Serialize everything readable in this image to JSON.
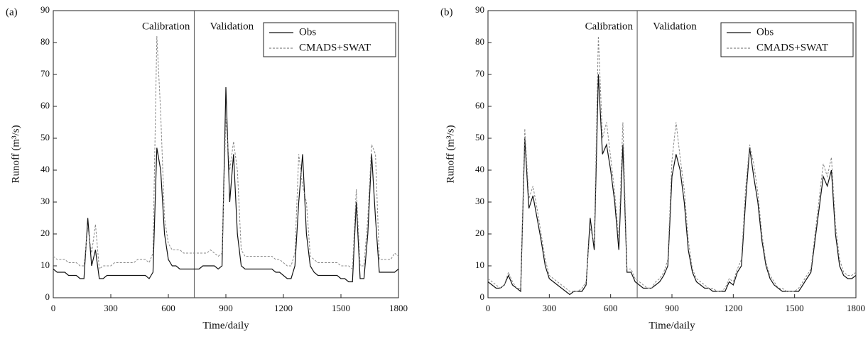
{
  "chart_data": [
    {
      "type": "line",
      "panel_label": "(a)",
      "xlabel": "Time/daily",
      "ylabel": "Runoff (m³/s)",
      "xlim": [
        0,
        1800
      ],
      "xticks": [
        0,
        300,
        600,
        900,
        1200,
        1500,
        1800
      ],
      "ylim": [
        0,
        90
      ],
      "yticks": [
        0,
        10,
        20,
        30,
        40,
        50,
        60,
        70,
        80,
        90
      ],
      "divider_x": 735,
      "period_labels": [
        "Calibration",
        "Validation"
      ],
      "legend": "upper right",
      "x": [
        0,
        20,
        40,
        60,
        80,
        100,
        120,
        140,
        160,
        180,
        200,
        220,
        240,
        260,
        280,
        300,
        320,
        340,
        360,
        380,
        400,
        420,
        440,
        460,
        480,
        500,
        520,
        540,
        560,
        580,
        600,
        620,
        640,
        660,
        680,
        700,
        720,
        740,
        760,
        780,
        800,
        820,
        840,
        860,
        880,
        900,
        920,
        940,
        960,
        980,
        1000,
        1020,
        1040,
        1060,
        1080,
        1100,
        1120,
        1140,
        1160,
        1180,
        1200,
        1220,
        1240,
        1260,
        1280,
        1300,
        1320,
        1340,
        1360,
        1380,
        1400,
        1420,
        1440,
        1460,
        1480,
        1500,
        1520,
        1540,
        1560,
        1580,
        1600,
        1620,
        1640,
        1660,
        1680,
        1700,
        1720,
        1740,
        1760,
        1780,
        1800
      ],
      "series": [
        {
          "name": "Obs",
          "color": "#111111",
          "dash": false,
          "values": [
            9,
            8,
            8,
            8,
            7,
            7,
            7,
            6,
            6,
            25,
            10,
            15,
            6,
            6,
            7,
            7,
            7,
            7,
            7,
            7,
            7,
            7,
            7,
            7,
            7,
            6,
            8,
            47,
            40,
            20,
            12,
            10,
            10,
            9,
            9,
            9,
            9,
            9,
            9,
            10,
            10,
            10,
            10,
            9,
            10,
            66,
            30,
            45,
            20,
            10,
            9,
            9,
            9,
            9,
            9,
            9,
            9,
            9,
            8,
            8,
            7,
            6,
            6,
            10,
            30,
            45,
            20,
            10,
            8,
            7,
            7,
            7,
            7,
            7,
            7,
            6,
            6,
            5,
            5,
            30,
            6,
            6,
            20,
            45,
            25,
            8,
            8,
            8,
            8,
            8,
            9
          ]
        },
        {
          "name": "CMADS+SWAT",
          "color": "#888888",
          "dash": true,
          "values": [
            13,
            12,
            12,
            12,
            11,
            11,
            11,
            10,
            10,
            22,
            14,
            23,
            9,
            10,
            10,
            10,
            11,
            11,
            11,
            11,
            11,
            11,
            12,
            12,
            12,
            11,
            14,
            82,
            58,
            25,
            17,
            15,
            15,
            15,
            14,
            14,
            14,
            14,
            14,
            14,
            14,
            15,
            14,
            13,
            14,
            56,
            40,
            49,
            40,
            15,
            13,
            13,
            13,
            13,
            13,
            13,
            13,
            13,
            12,
            12,
            11,
            10,
            10,
            14,
            45,
            35,
            30,
            13,
            12,
            11,
            11,
            11,
            11,
            11,
            11,
            10,
            10,
            10,
            9,
            34,
            10,
            10,
            25,
            48,
            45,
            12,
            12,
            12,
            12,
            14,
            13
          ]
        }
      ]
    },
    {
      "type": "line",
      "panel_label": "(b)",
      "xlabel": "Time/daily",
      "ylabel": "Runoff (m³/s)",
      "xlim": [
        0,
        1800
      ],
      "xticks": [
        0,
        300,
        600,
        900,
        1200,
        1500,
        1800
      ],
      "ylim": [
        0,
        90
      ],
      "yticks": [
        0,
        10,
        20,
        30,
        40,
        50,
        60,
        70,
        80,
        90
      ],
      "divider_x": 730,
      "period_labels": [
        "Calibration",
        "Validation"
      ],
      "legend": "upper right",
      "x": [
        0,
        20,
        40,
        60,
        80,
        100,
        120,
        140,
        160,
        180,
        200,
        220,
        240,
        260,
        280,
        300,
        320,
        340,
        360,
        380,
        400,
        420,
        440,
        460,
        480,
        500,
        520,
        540,
        560,
        580,
        600,
        620,
        640,
        660,
        680,
        700,
        720,
        740,
        760,
        780,
        800,
        820,
        840,
        860,
        880,
        900,
        920,
        940,
        960,
        980,
        1000,
        1020,
        1040,
        1060,
        1080,
        1100,
        1120,
        1140,
        1160,
        1180,
        1200,
        1220,
        1240,
        1260,
        1280,
        1300,
        1320,
        1340,
        1360,
        1380,
        1400,
        1420,
        1440,
        1460,
        1480,
        1500,
        1520,
        1540,
        1560,
        1580,
        1600,
        1620,
        1640,
        1660,
        1680,
        1700,
        1720,
        1740,
        1760,
        1780,
        1800
      ],
      "series": [
        {
          "name": "Obs",
          "color": "#111111",
          "dash": false,
          "values": [
            5,
            4,
            3,
            3,
            4,
            7,
            4,
            3,
            2,
            50,
            28,
            32,
            25,
            18,
            10,
            6,
            5,
            4,
            3,
            2,
            1,
            2,
            2,
            2,
            4,
            25,
            15,
            70,
            45,
            48,
            40,
            30,
            15,
            48,
            8,
            8,
            5,
            4,
            3,
            3,
            3,
            4,
            5,
            7,
            10,
            38,
            45,
            40,
            30,
            15,
            8,
            5,
            4,
            3,
            3,
            2,
            2,
            2,
            2,
            5,
            4,
            8,
            10,
            30,
            47,
            38,
            30,
            18,
            10,
            6,
            4,
            3,
            2,
            2,
            2,
            2,
            2,
            4,
            6,
            8,
            18,
            28,
            38,
            35,
            40,
            20,
            10,
            7,
            6,
            6,
            7
          ]
        },
        {
          "name": "CMADS+SWAT",
          "color": "#888888",
          "dash": true,
          "values": [
            6,
            5,
            4,
            3,
            4,
            8,
            5,
            3,
            3,
            53,
            31,
            35,
            28,
            20,
            12,
            7,
            6,
            5,
            4,
            3,
            2,
            2,
            2,
            3,
            5,
            22,
            17,
            82,
            50,
            55,
            44,
            33,
            18,
            55,
            9,
            9,
            6,
            5,
            4,
            3,
            3,
            5,
            6,
            8,
            12,
            43,
            55,
            44,
            34,
            18,
            9,
            6,
            5,
            4,
            3,
            3,
            2,
            2,
            3,
            6,
            5,
            9,
            12,
            34,
            48,
            42,
            33,
            20,
            11,
            7,
            5,
            3,
            3,
            2,
            2,
            2,
            3,
            5,
            7,
            9,
            20,
            31,
            42,
            38,
            44,
            23,
            12,
            8,
            7,
            7,
            8
          ]
        }
      ]
    }
  ]
}
